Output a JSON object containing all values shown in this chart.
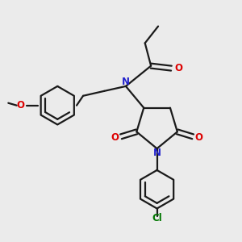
{
  "bg_color": "#ebebeb",
  "bond_color": "#1a1a1a",
  "N_color": "#2222cc",
  "O_color": "#dd0000",
  "Cl_color": "#007700",
  "line_width": 1.6,
  "fig_size": [
    3.0,
    3.0
  ],
  "dpi": 100,
  "xlim": [
    0,
    10
  ],
  "ylim": [
    0,
    10
  ]
}
